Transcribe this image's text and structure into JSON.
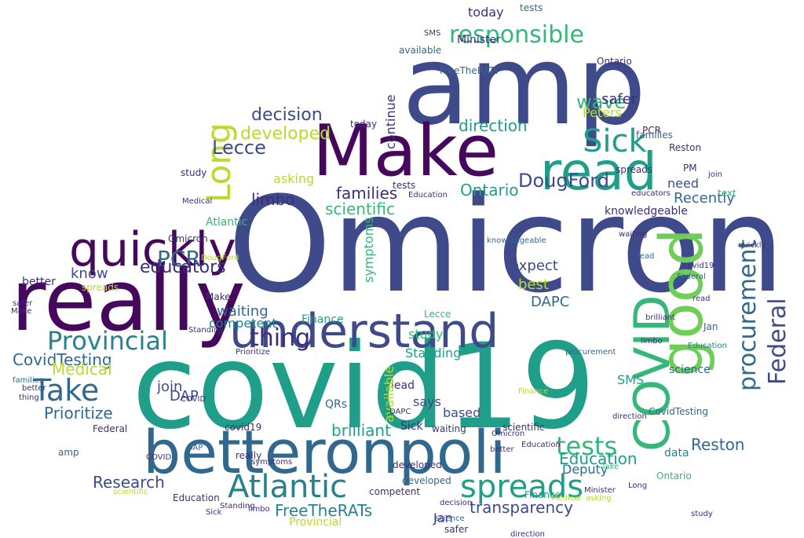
{
  "title": "Word cloud",
  "palette": {
    "navy": "#3b2f7a",
    "purple": "#46085c",
    "indigo": "#3e4a89",
    "blue": "#31688e",
    "teal": "#26828e",
    "cyan": "#1f9e89",
    "green": "#35b779",
    "lime": "#6ece58",
    "yellow": "#b5de2b"
  },
  "words": {
    "omicron": "Omicron",
    "covid19": "covid19",
    "amp": "amp",
    "really": "really",
    "make": "Make",
    "betteronpoli": "betteronpoli",
    "understand": "understand",
    "good": "good",
    "covid": "COVID",
    "read": "read",
    "quickly": "quickly",
    "atlantic": "Atlantic",
    "spreads": "spreads",
    "sick": "Sick",
    "take": "Take",
    "long": "Long",
    "responsible": "responsible",
    "provincial": "Provincial",
    "procurement": "procurement",
    "federal": "Federal",
    "tests": "tests",
    "pcr": "PCR",
    "thing": "thing",
    "lecce": "Lecce",
    "dougford": "DougFord",
    "wave": "wave",
    "decision": "decision",
    "developed": "developed",
    "educators": "educators",
    "families": "families",
    "scientific": "scientific",
    "ontario": "Ontario",
    "direction": "direction",
    "limbo": "limbo",
    "research": "Research",
    "education": "Education",
    "reston": "Reston",
    "freetherats": "FreeTheRATs",
    "transparency": "transparency",
    "covidtesting": "CovidTesting",
    "medical": "Medical",
    "prioritize": "Prioritize",
    "brilliant": "brilliant",
    "join": "join",
    "dap": "DAP",
    "dapc": "DAPC",
    "waiting": "waiting",
    "competent": "competent",
    "expect": "expect",
    "best": "best",
    "know": "know",
    "safer": "safer",
    "peters": "Peters",
    "recently": "Recently",
    "need": "need",
    "today": "today",
    "asking": "asking",
    "jan": "Jan",
    "deputy": "Deputy",
    "study": "study",
    "standing": "Standing",
    "symptoms": "symptoms",
    "sms": "SMS",
    "qrs": "QRs",
    "available": "available",
    "says": "says",
    "based": "based",
    "lead": "lead",
    "knowledgeable": "knowledgeable",
    "minister": "Minister",
    "finance": "Finance",
    "science": "science",
    "continue": "continue",
    "better": "better",
    "data": "data",
    "pm": "PM",
    "text": "text"
  }
}
